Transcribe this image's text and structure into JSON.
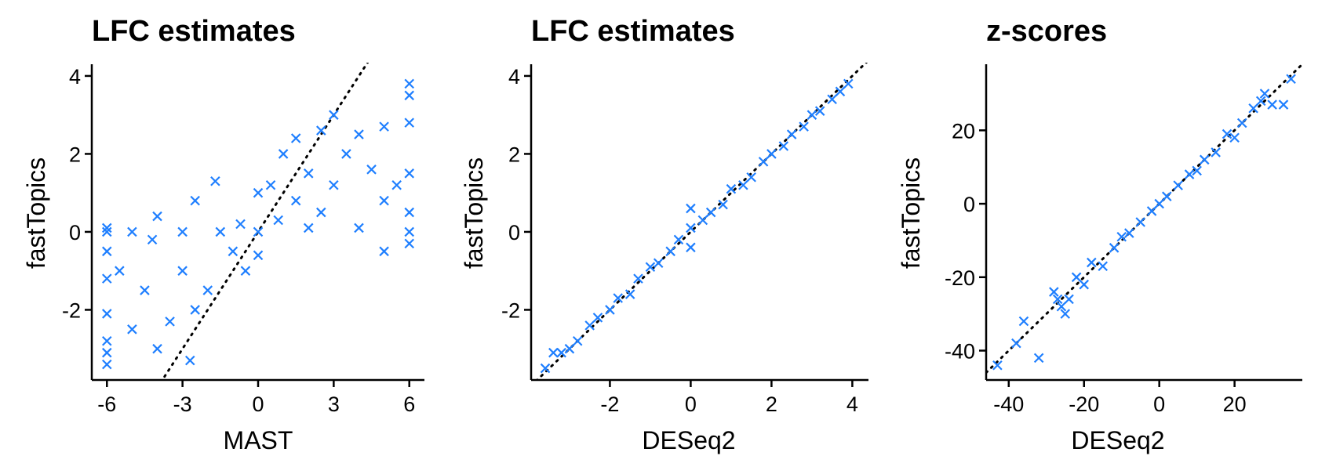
{
  "colors": {
    "points": "#1f7fff",
    "axis": "#000000",
    "reference_line": "#000000"
  },
  "marker": "x",
  "chart_data": [
    {
      "type": "scatter",
      "title": "LFC estimates",
      "xlabel": "MAST",
      "ylabel": "fastTopics",
      "xlim": [
        -6.6,
        6.6
      ],
      "ylim": [
        -3.8,
        4.3
      ],
      "xticks": [
        -6,
        -3,
        0,
        3,
        6
      ],
      "yticks": [
        -2,
        0,
        2,
        4
      ],
      "reference_line": {
        "style": "dotted",
        "slope": 1,
        "intercept": 0
      },
      "grid": false,
      "legend": "none",
      "points": [
        [
          -6,
          0.1
        ],
        [
          -6,
          -0.5
        ],
        [
          -6,
          -1.2
        ],
        [
          -6,
          -2.1
        ],
        [
          -6,
          -3.1
        ],
        [
          -6,
          -3.4
        ],
        [
          -6,
          0.0
        ],
        [
          -6,
          -2.8
        ],
        [
          -5.5,
          -1.0
        ],
        [
          -5.0,
          0.0
        ],
        [
          -5.0,
          -2.5
        ],
        [
          -4.5,
          -1.5
        ],
        [
          -4.2,
          -0.2
        ],
        [
          -4.0,
          0.4
        ],
        [
          -4.0,
          -3.0
        ],
        [
          -3.5,
          -2.3
        ],
        [
          -3.0,
          -1.0
        ],
        [
          -3.0,
          0.0
        ],
        [
          -2.7,
          -3.3
        ],
        [
          -2.5,
          0.8
        ],
        [
          -2.5,
          -2.0
        ],
        [
          -2.0,
          -1.5
        ],
        [
          -1.7,
          1.3
        ],
        [
          -1.5,
          0.0
        ],
        [
          -1.0,
          -0.5
        ],
        [
          -0.7,
          0.2
        ],
        [
          -0.5,
          -1.0
        ],
        [
          0.0,
          0.0
        ],
        [
          0.0,
          1.0
        ],
        [
          0.0,
          -0.6
        ],
        [
          0.5,
          1.2
        ],
        [
          0.8,
          0.3
        ],
        [
          1.0,
          2.0
        ],
        [
          1.5,
          0.8
        ],
        [
          1.5,
          2.4
        ],
        [
          2.0,
          1.5
        ],
        [
          2.0,
          0.1
        ],
        [
          2.5,
          2.6
        ],
        [
          2.5,
          0.5
        ],
        [
          3.0,
          3.0
        ],
        [
          3.0,
          1.2
        ],
        [
          3.5,
          2.0
        ],
        [
          4.0,
          2.5
        ],
        [
          4.0,
          0.1
        ],
        [
          4.5,
          1.6
        ],
        [
          5.0,
          0.8
        ],
        [
          5.0,
          2.7
        ],
        [
          5.5,
          1.2
        ],
        [
          5.0,
          -0.5
        ],
        [
          6.0,
          3.8
        ],
        [
          6.0,
          3.5
        ],
        [
          6.0,
          2.8
        ],
        [
          6.0,
          1.5
        ],
        [
          6.0,
          0.5
        ],
        [
          6.0,
          0.0
        ],
        [
          6.0,
          -0.3
        ]
      ]
    },
    {
      "type": "scatter",
      "title": "LFC estimates",
      "xlabel": "DESeq2",
      "ylabel": "fastTopics",
      "xlim": [
        -3.95,
        4.4
      ],
      "ylim": [
        -3.8,
        4.3
      ],
      "xticks": [
        -2,
        0,
        2,
        4
      ],
      "yticks": [
        -2,
        0,
        2,
        4
      ],
      "reference_line": {
        "style": "dotted",
        "slope": 1,
        "intercept": 0
      },
      "grid": false,
      "legend": "none",
      "points": [
        [
          -3.6,
          -3.5
        ],
        [
          -3.4,
          -3.1
        ],
        [
          -3.2,
          -3.1
        ],
        [
          -3.0,
          -3.0
        ],
        [
          -2.8,
          -2.8
        ],
        [
          -2.5,
          -2.4
        ],
        [
          -2.3,
          -2.2
        ],
        [
          -2.0,
          -2.0
        ],
        [
          -1.8,
          -1.7
        ],
        [
          -1.5,
          -1.6
        ],
        [
          -1.3,
          -1.2
        ],
        [
          -1.0,
          -0.9
        ],
        [
          -0.8,
          -0.8
        ],
        [
          -0.5,
          -0.5
        ],
        [
          -0.3,
          -0.2
        ],
        [
          0.0,
          0.6
        ],
        [
          0.0,
          -0.4
        ],
        [
          0.0,
          0.1
        ],
        [
          0.3,
          0.3
        ],
        [
          0.5,
          0.5
        ],
        [
          0.8,
          0.7
        ],
        [
          1.0,
          1.1
        ],
        [
          1.3,
          1.2
        ],
        [
          1.5,
          1.4
        ],
        [
          1.8,
          1.8
        ],
        [
          2.0,
          2.0
        ],
        [
          2.3,
          2.2
        ],
        [
          2.5,
          2.5
        ],
        [
          2.8,
          2.7
        ],
        [
          3.0,
          3.0
        ],
        [
          3.2,
          3.1
        ],
        [
          3.5,
          3.4
        ],
        [
          3.7,
          3.6
        ],
        [
          3.9,
          3.8
        ]
      ]
    },
    {
      "type": "scatter",
      "title": "z-scores",
      "xlabel": "DESeq2",
      "ylabel": "fastTopics",
      "xlim": [
        -46,
        38
      ],
      "ylim": [
        -48,
        38
      ],
      "xticks": [
        -40,
        -20,
        0,
        20
      ],
      "yticks": [
        -40,
        -20,
        0,
        20
      ],
      "reference_line": {
        "style": "dotted",
        "slope": 1,
        "intercept": 0
      },
      "grid": false,
      "legend": "none",
      "points": [
        [
          -43,
          -44
        ],
        [
          -38,
          -38
        ],
        [
          -36,
          -32
        ],
        [
          -32,
          -42
        ],
        [
          -28,
          -24
        ],
        [
          -27,
          -26
        ],
        [
          -26,
          -28
        ],
        [
          -25,
          -30
        ],
        [
          -24,
          -26
        ],
        [
          -22,
          -20
        ],
        [
          -20,
          -22
        ],
        [
          -18,
          -16
        ],
        [
          -15,
          -17
        ],
        [
          -12,
          -12
        ],
        [
          -10,
          -9
        ],
        [
          -8,
          -8
        ],
        [
          -5,
          -5
        ],
        [
          -2,
          -2
        ],
        [
          0,
          0
        ],
        [
          2,
          2
        ],
        [
          5,
          5
        ],
        [
          8,
          8
        ],
        [
          10,
          9
        ],
        [
          12,
          12
        ],
        [
          15,
          14
        ],
        [
          18,
          19
        ],
        [
          20,
          18
        ],
        [
          22,
          22
        ],
        [
          25,
          26
        ],
        [
          27,
          28
        ],
        [
          28,
          30
        ],
        [
          30,
          27
        ],
        [
          33,
          27
        ],
        [
          35,
          34
        ]
      ]
    }
  ]
}
